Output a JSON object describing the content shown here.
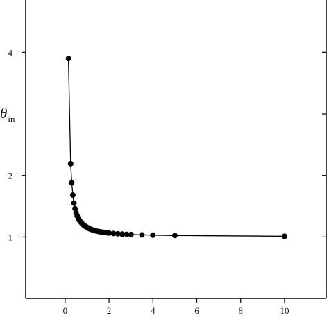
{
  "chart_data": {
    "type": "line",
    "ylabel": "θ",
    "ylabel_subscript": "in",
    "xlim": [
      -1.8,
      11.9
    ],
    "ylim": [
      0,
      4.85
    ],
    "xticks": [
      "0",
      "2",
      "4",
      "6",
      "8",
      "10"
    ],
    "xtick_values": [
      0,
      2,
      4,
      6,
      8,
      10
    ],
    "yticks": [
      "1",
      "2",
      "4"
    ],
    "ytick_values": [
      1,
      2,
      4
    ],
    "right_ticks": [
      1,
      2,
      3,
      4
    ],
    "series": [
      {
        "marker": "circle",
        "color": "#000000",
        "x": [
          0.15,
          0.25,
          0.3,
          0.35,
          0.4,
          0.45,
          0.5,
          0.55,
          0.6,
          0.65,
          0.7,
          0.75,
          0.8,
          0.85,
          0.9,
          0.95,
          1.0,
          1.05,
          1.1,
          1.15,
          1.2,
          1.3,
          1.4,
          1.5,
          1.6,
          1.7,
          1.8,
          1.9,
          2.0,
          2.2,
          2.4,
          2.6,
          2.8,
          3.0,
          3.5,
          4.0,
          5.0,
          10.0
        ],
        "y": [
          3.9,
          2.19,
          1.88,
          1.68,
          1.55,
          1.46,
          1.39,
          1.34,
          1.3,
          1.27,
          1.245,
          1.225,
          1.205,
          1.19,
          1.175,
          1.165,
          1.155,
          1.145,
          1.135,
          1.127,
          1.12,
          1.108,
          1.098,
          1.09,
          1.083,
          1.077,
          1.072,
          1.067,
          1.063,
          1.056,
          1.051,
          1.046,
          1.042,
          1.039,
          1.033,
          1.029,
          1.023,
          1.011
        ]
      }
    ]
  }
}
